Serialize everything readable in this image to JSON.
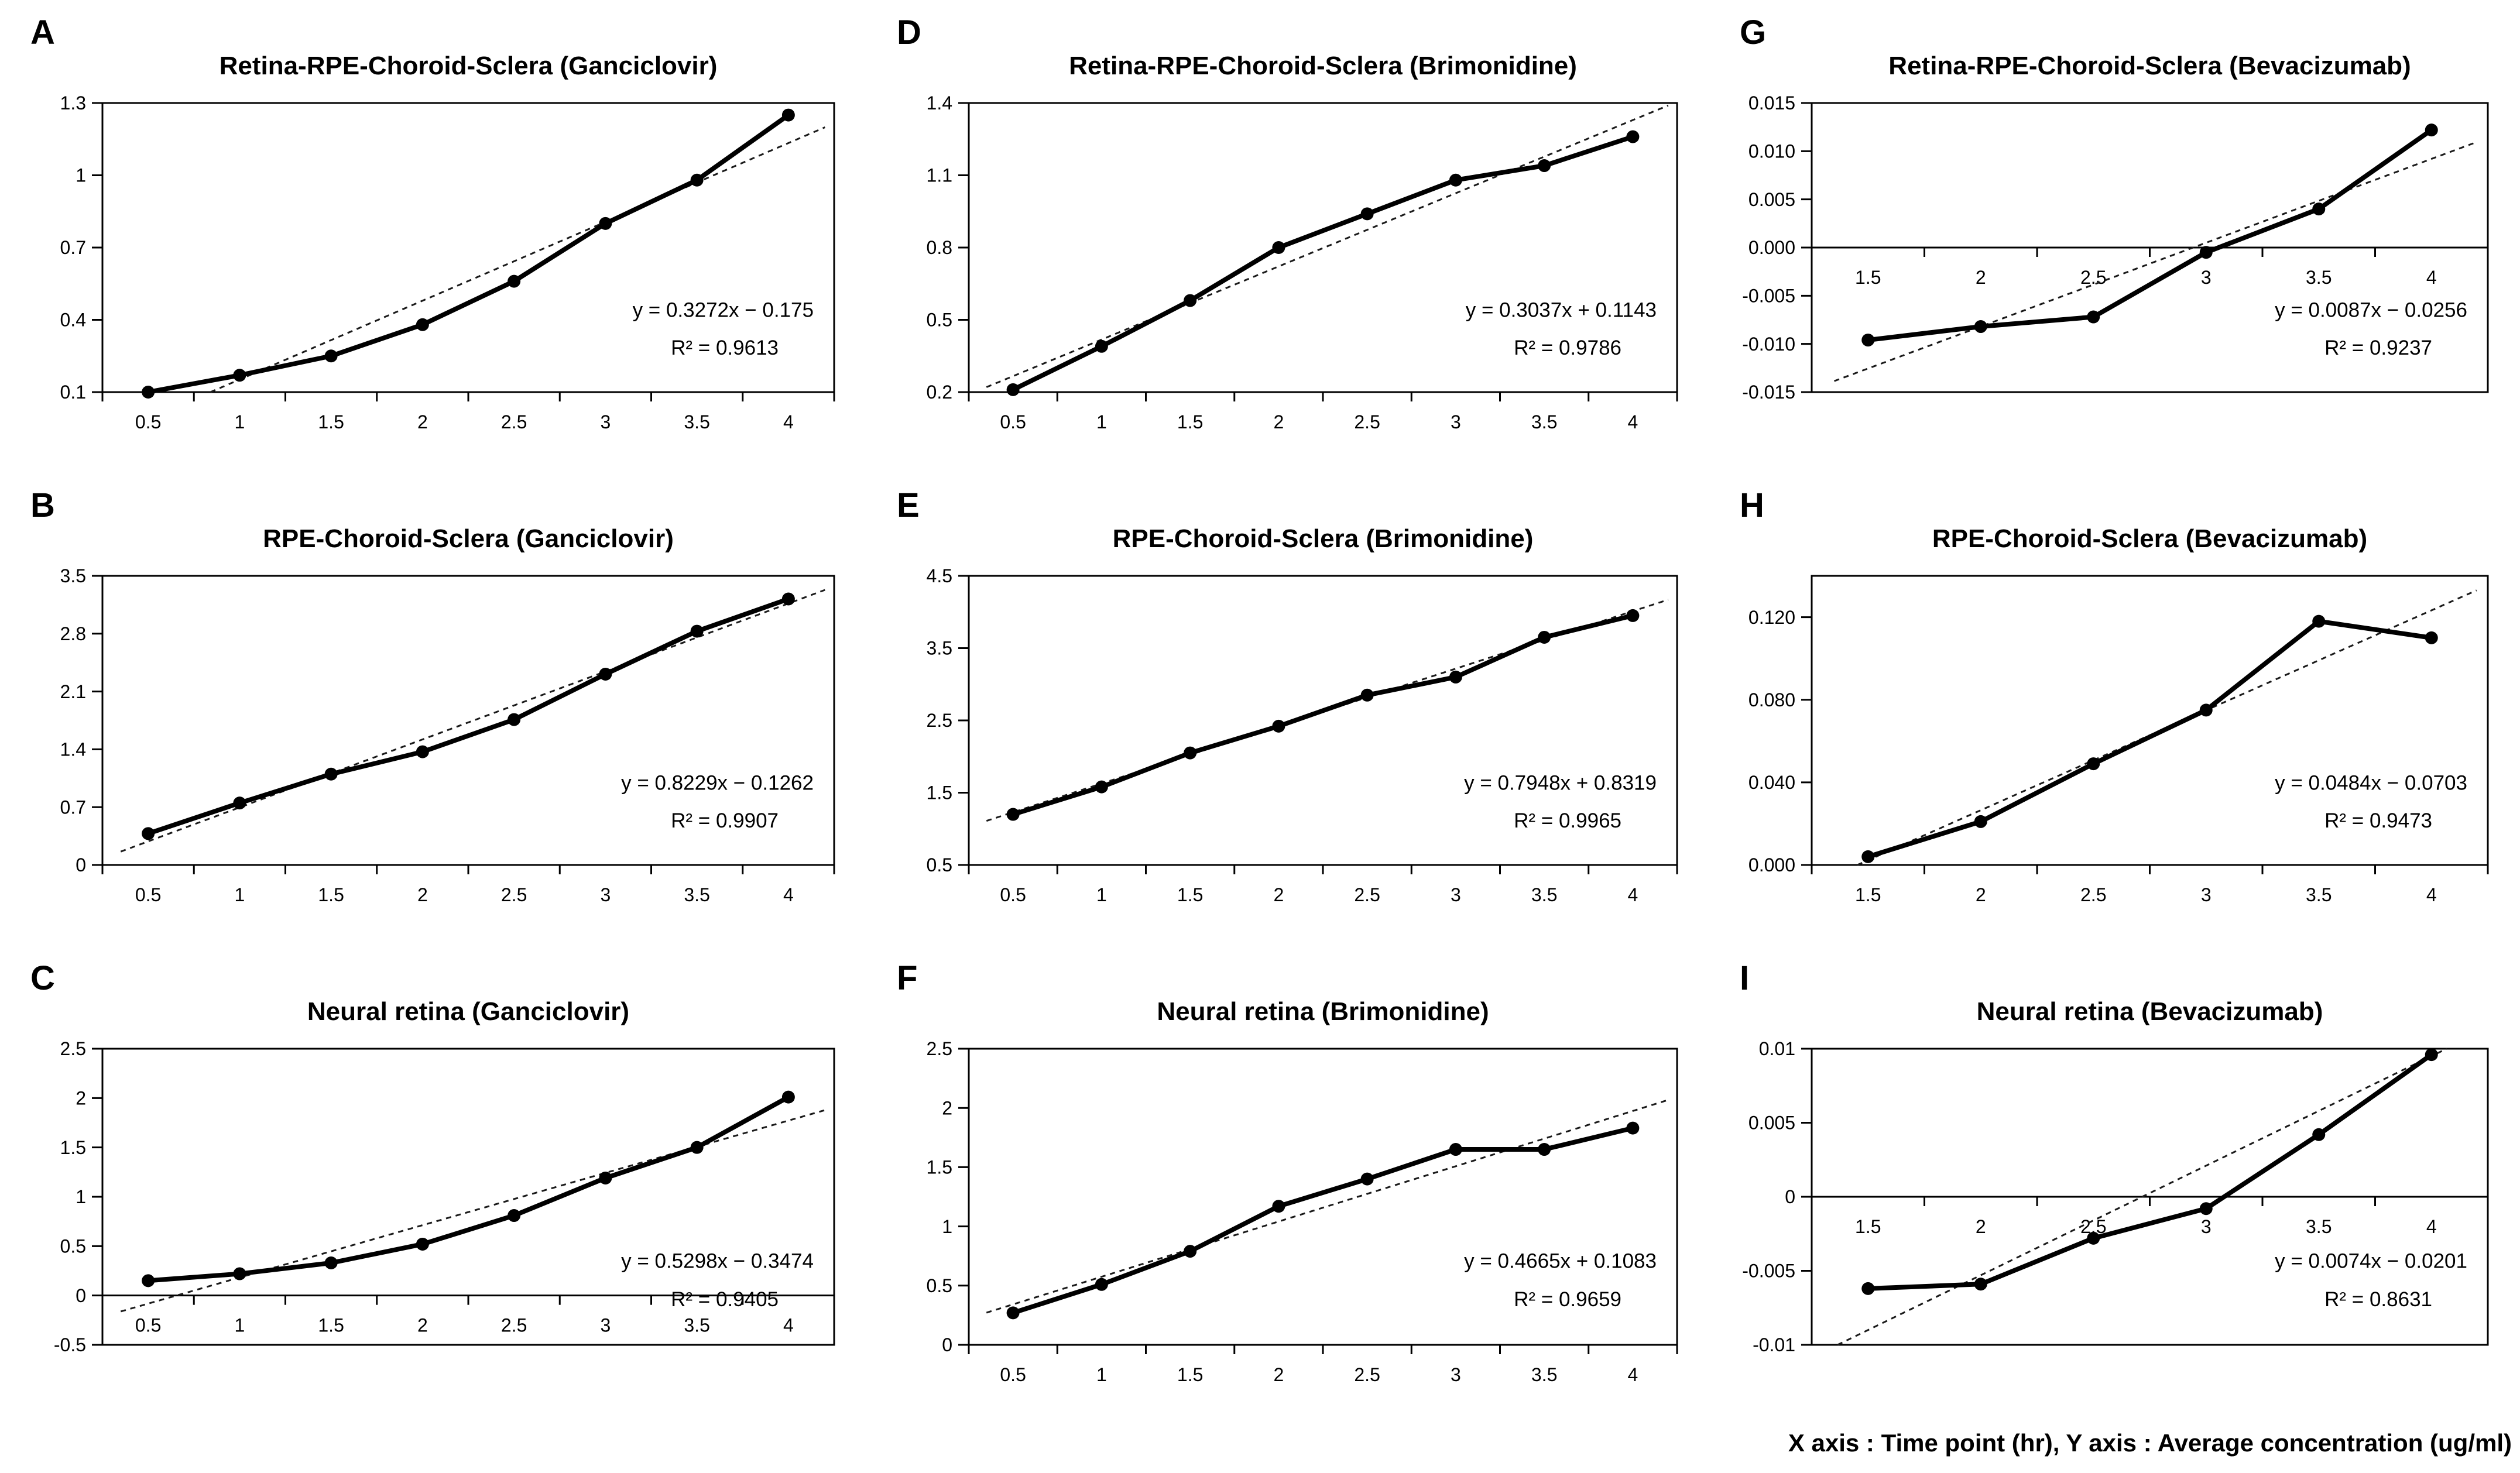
{
  "caption": "X axis : Time point (hr), Y axis : Average concentration (ug/ml)",
  "axis_meta": {
    "x_axis_label": "Time point (hr)",
    "y_axis_label": "Average concentration (ug/ml)"
  },
  "colors": {
    "line": "#000000",
    "trend": "#1a1a1a",
    "text": "#000000",
    "background": "#ffffff"
  },
  "chart_data": [
    {
      "letter": "A",
      "title": "Retina-RPE-Choroid-Sclera (Ganciclovir)",
      "type": "line",
      "x": [
        0.5,
        1,
        1.5,
        2,
        2.5,
        3,
        3.5,
        4
      ],
      "y": [
        0.1,
        0.17,
        0.25,
        0.38,
        0.56,
        0.8,
        0.98,
        1.25
      ],
      "ylim": [
        0.1,
        1.3
      ],
      "yticks": [
        {
          "v": 0.1,
          "label": "0.1"
        },
        {
          "v": 0.4,
          "label": "0.4"
        },
        {
          "v": 0.7,
          "label": "0.7"
        },
        {
          "v": 1.0,
          "label": "1"
        },
        {
          "v": 1.3,
          "label": "1.3"
        }
      ],
      "xtick_labels": [
        "0.5",
        "1",
        "1.5",
        "2",
        "2.5",
        "3",
        "3.5",
        "4"
      ],
      "equation": "y = 0.3272x − 0.175",
      "r2": "R² = 0.9613",
      "trend": {
        "slope": 0.3272,
        "intercept": -0.175
      }
    },
    {
      "letter": "D",
      "title": "Retina-RPE-Choroid-Sclera (Brimonidine)",
      "type": "line",
      "x": [
        0.5,
        1,
        1.5,
        2,
        2.5,
        3,
        3.5,
        4
      ],
      "y": [
        0.21,
        0.39,
        0.58,
        0.8,
        0.94,
        1.08,
        1.14,
        1.26
      ],
      "ylim": [
        0.2,
        1.4
      ],
      "yticks": [
        {
          "v": 0.2,
          "label": "0.2"
        },
        {
          "v": 0.5,
          "label": "0.5"
        },
        {
          "v": 0.8,
          "label": "0.8"
        },
        {
          "v": 1.1,
          "label": "1.1"
        },
        {
          "v": 1.4,
          "label": "1.4"
        }
      ],
      "xtick_labels": [
        "0.5",
        "1",
        "1.5",
        "2",
        "2.5",
        "3",
        "3.5",
        "4"
      ],
      "equation": "y = 0.3037x + 0.1143",
      "r2": "R² = 0.9786",
      "trend": {
        "slope": 0.3037,
        "intercept": 0.1143
      }
    },
    {
      "letter": "G",
      "title": "Retina-RPE-Choroid-Sclera (Bevacizumab)",
      "type": "line",
      "x": [
        1.5,
        2,
        2.5,
        3,
        3.5,
        4
      ],
      "y": [
        -0.0096,
        -0.0082,
        -0.0072,
        -0.0005,
        0.004,
        0.0122
      ],
      "ylim": [
        -0.015,
        0.015
      ],
      "yticks": [
        {
          "v": -0.015,
          "label": "-0.015"
        },
        {
          "v": -0.01,
          "label": "-0.010"
        },
        {
          "v": -0.005,
          "label": "-0.005"
        },
        {
          "v": 0.0,
          "label": "0.000"
        },
        {
          "v": 0.005,
          "label": "0.005"
        },
        {
          "v": 0.01,
          "label": "0.010"
        },
        {
          "v": 0.015,
          "label": "0.015"
        }
      ],
      "xtick_labels": [
        "1.5",
        "2",
        "2.5",
        "3",
        "3.5",
        "4"
      ],
      "equation": "y = 0.0087x − 0.0256",
      "r2": "R² = 0.9237",
      "trend": {
        "slope": 0.0087,
        "intercept": -0.0256
      }
    },
    {
      "letter": "B",
      "title": "RPE-Choroid-Sclera (Ganciclovir)",
      "type": "line",
      "x": [
        0.5,
        1,
        1.5,
        2,
        2.5,
        3,
        3.5,
        4
      ],
      "y": [
        0.38,
        0.75,
        1.1,
        1.37,
        1.76,
        2.31,
        2.83,
        3.22
      ],
      "ylim": [
        0,
        3.5
      ],
      "yticks": [
        {
          "v": 0,
          "label": "0"
        },
        {
          "v": 0.7,
          "label": "0.7"
        },
        {
          "v": 1.4,
          "label": "1.4"
        },
        {
          "v": 2.1,
          "label": "2.1"
        },
        {
          "v": 2.8,
          "label": "2.8"
        },
        {
          "v": 3.5,
          "label": "3.5"
        }
      ],
      "xtick_labels": [
        "0.5",
        "1",
        "1.5",
        "2",
        "2.5",
        "3",
        "3.5",
        "4"
      ],
      "equation": "y = 0.8229x − 0.1262",
      "r2": "R² = 0.9907",
      "trend": {
        "slope": 0.8229,
        "intercept": -0.1262
      }
    },
    {
      "letter": "E",
      "title": "RPE-Choroid-Sclera (Brimonidine)",
      "type": "line",
      "x": [
        0.5,
        1,
        1.5,
        2,
        2.5,
        3,
        3.5,
        4
      ],
      "y": [
        1.2,
        1.58,
        2.05,
        2.42,
        2.85,
        3.1,
        3.65,
        3.95
      ],
      "ylim": [
        0.5,
        4.5
      ],
      "yticks": [
        {
          "v": 0.5,
          "label": "0.5"
        },
        {
          "v": 1.5,
          "label": "1.5"
        },
        {
          "v": 2.5,
          "label": "2.5"
        },
        {
          "v": 3.5,
          "label": "3.5"
        },
        {
          "v": 4.5,
          "label": "4.5"
        }
      ],
      "xtick_labels": [
        "0.5",
        "1",
        "1.5",
        "2",
        "2.5",
        "3",
        "3.5",
        "4"
      ],
      "equation": "y = 0.7948x + 0.8319",
      "r2": "R² = 0.9965",
      "trend": {
        "slope": 0.7948,
        "intercept": 0.8319
      }
    },
    {
      "letter": "H",
      "title": "RPE-Choroid-Sclera (Bevacizumab)",
      "type": "line",
      "x": [
        1.5,
        2,
        2.5,
        3,
        3.5,
        4
      ],
      "y": [
        0.004,
        0.021,
        0.049,
        0.075,
        0.118,
        0.11
      ],
      "ylim": [
        0,
        0.14
      ],
      "yticks": [
        {
          "v": 0.0,
          "label": "0.000"
        },
        {
          "v": 0.04,
          "label": "0.040"
        },
        {
          "v": 0.08,
          "label": "0.080"
        },
        {
          "v": 0.12,
          "label": "0.120"
        }
      ],
      "xtick_labels": [
        "1.5",
        "2",
        "2.5",
        "3",
        "3.5",
        "4"
      ],
      "equation": "y = 0.0484x − 0.0703",
      "r2": "R² = 0.9473",
      "trend": {
        "slope": 0.0484,
        "intercept": -0.0703
      }
    },
    {
      "letter": "C",
      "title": "Neural retina (Ganciclovir)",
      "type": "line",
      "x": [
        0.5,
        1,
        1.5,
        2,
        2.5,
        3,
        3.5,
        4
      ],
      "y": [
        0.15,
        0.22,
        0.33,
        0.52,
        0.81,
        1.19,
        1.5,
        2.01
      ],
      "ylim": [
        -0.5,
        2.5
      ],
      "yticks": [
        {
          "v": -0.5,
          "label": "-0.5"
        },
        {
          "v": 0,
          "label": "0"
        },
        {
          "v": 0.5,
          "label": "0.5"
        },
        {
          "v": 1.0,
          "label": "1"
        },
        {
          "v": 1.5,
          "label": "1.5"
        },
        {
          "v": 2.0,
          "label": "2"
        },
        {
          "v": 2.5,
          "label": "2.5"
        }
      ],
      "xtick_labels": [
        "0.5",
        "1",
        "1.5",
        "2",
        "2.5",
        "3",
        "3.5",
        "4"
      ],
      "equation": "y = 0.5298x − 0.3474",
      "r2": "R² = 0.9405",
      "trend": {
        "slope": 0.5298,
        "intercept": -0.3474
      }
    },
    {
      "letter": "F",
      "title": "Neural retina (Brimonidine)",
      "type": "line",
      "x": [
        0.5,
        1,
        1.5,
        2,
        2.5,
        3,
        3.5,
        4
      ],
      "y": [
        0.27,
        0.51,
        0.79,
        1.17,
        1.4,
        1.65,
        1.65,
        1.83
      ],
      "ylim": [
        0,
        2.5
      ],
      "yticks": [
        {
          "v": 0,
          "label": "0"
        },
        {
          "v": 0.5,
          "label": "0.5"
        },
        {
          "v": 1.0,
          "label": "1"
        },
        {
          "v": 1.5,
          "label": "1.5"
        },
        {
          "v": 2.0,
          "label": "2"
        },
        {
          "v": 2.5,
          "label": "2.5"
        }
      ],
      "xtick_labels": [
        "0.5",
        "1",
        "1.5",
        "2",
        "2.5",
        "3",
        "3.5",
        "4"
      ],
      "equation": "y = 0.4665x + 0.1083",
      "r2": "R² = 0.9659",
      "trend": {
        "slope": 0.4665,
        "intercept": 0.1083
      }
    },
    {
      "letter": "I",
      "title": "Neural retina (Bevacizumab)",
      "type": "line",
      "x": [
        1.5,
        2,
        2.5,
        3,
        3.5,
        4
      ],
      "y": [
        -0.0062,
        -0.0059,
        -0.0028,
        -0.0008,
        0.0042,
        0.0096
      ],
      "ylim": [
        -0.01,
        0.01
      ],
      "yticks": [
        {
          "v": -0.01,
          "label": "-0.01"
        },
        {
          "v": -0.005,
          "label": "-0.005"
        },
        {
          "v": 0,
          "label": "0"
        },
        {
          "v": 0.005,
          "label": "0.005"
        },
        {
          "v": 0.01,
          "label": "0.01"
        }
      ],
      "xtick_labels": [
        "1.5",
        "2",
        "2.5",
        "3",
        "3.5",
        "4"
      ],
      "equation": "y = 0.0074x − 0.0201",
      "r2": "R² = 0.8631",
      "trend": {
        "slope": 0.0074,
        "intercept": -0.0201
      }
    }
  ]
}
